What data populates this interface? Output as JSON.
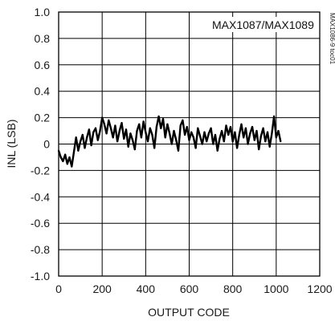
{
  "chart_data": {
    "type": "line",
    "part_number": "MAX1087/MAX1089",
    "figure_id": "MAX1086-9 toc01",
    "xlabel": "OUTPUT CODE",
    "ylabel": "INL (LSB)",
    "xlim": [
      0,
      1200
    ],
    "ylim": [
      -1.0,
      1.0
    ],
    "x_ticks": [
      "0",
      "200",
      "400",
      "600",
      "800",
      "1000",
      "1200"
    ],
    "y_ticks": [
      "1.0",
      "0.8",
      "0.6",
      "0.4",
      "0.2",
      "0",
      "-0.2",
      "-0.4",
      "-0.6",
      "-0.8",
      "-1.0"
    ],
    "grid": true,
    "series": [
      {
        "color": "#000000",
        "x": [
          0,
          10,
          20,
          30,
          40,
          50,
          60,
          70,
          80,
          90,
          100,
          110,
          120,
          130,
          140,
          150,
          160,
          170,
          180,
          190,
          200,
          210,
          220,
          230,
          240,
          250,
          260,
          270,
          280,
          290,
          300,
          310,
          320,
          330,
          340,
          350,
          360,
          370,
          380,
          390,
          400,
          410,
          420,
          430,
          440,
          450,
          460,
          470,
          480,
          490,
          500,
          510,
          520,
          530,
          540,
          550,
          560,
          570,
          580,
          590,
          600,
          610,
          620,
          630,
          640,
          650,
          660,
          670,
          680,
          690,
          700,
          710,
          720,
          730,
          740,
          750,
          760,
          770,
          780,
          790,
          800,
          810,
          820,
          830,
          840,
          850,
          860,
          870,
          880,
          890,
          900,
          910,
          920,
          930,
          940,
          950,
          960,
          970,
          980,
          990,
          1000,
          1010,
          1020
        ],
        "y": [
          -0.05,
          -0.1,
          -0.13,
          -0.08,
          -0.15,
          -0.1,
          -0.17,
          -0.06,
          0.05,
          -0.05,
          0.02,
          0.07,
          -0.03,
          0.05,
          0.11,
          -0.01,
          0.09,
          0.12,
          0.03,
          0.1,
          0.2,
          0.15,
          0.08,
          0.18,
          0.12,
          0.05,
          0.14,
          0.02,
          0.1,
          0.16,
          0.04,
          0.11,
          -0.02,
          0.08,
          0.03,
          -0.04,
          0.1,
          0.15,
          0.05,
          0.17,
          0.09,
          0.02,
          0.12,
          0.07,
          -0.03,
          0.13,
          0.21,
          0.12,
          0.19,
          0.05,
          0.15,
          0.08,
          0.0,
          0.1,
          0.03,
          -0.05,
          0.14,
          0.18,
          0.07,
          0.13,
          0.03,
          0.09,
          0.05,
          -0.03,
          0.12,
          0.06,
          0.0,
          0.09,
          0.02,
          0.08,
          0.12,
          0.0,
          0.07,
          -0.05,
          0.04,
          0.1,
          0.02,
          0.14,
          0.07,
          0.13,
          0.02,
          0.09,
          -0.03,
          0.07,
          0.15,
          0.05,
          0.12,
          0.0,
          0.08,
          0.13,
          0.03,
          0.1,
          -0.04,
          0.06,
          0.12,
          0.02,
          0.09,
          -0.02,
          0.08,
          0.21,
          0.05,
          0.1,
          0.02
        ]
      }
    ]
  }
}
